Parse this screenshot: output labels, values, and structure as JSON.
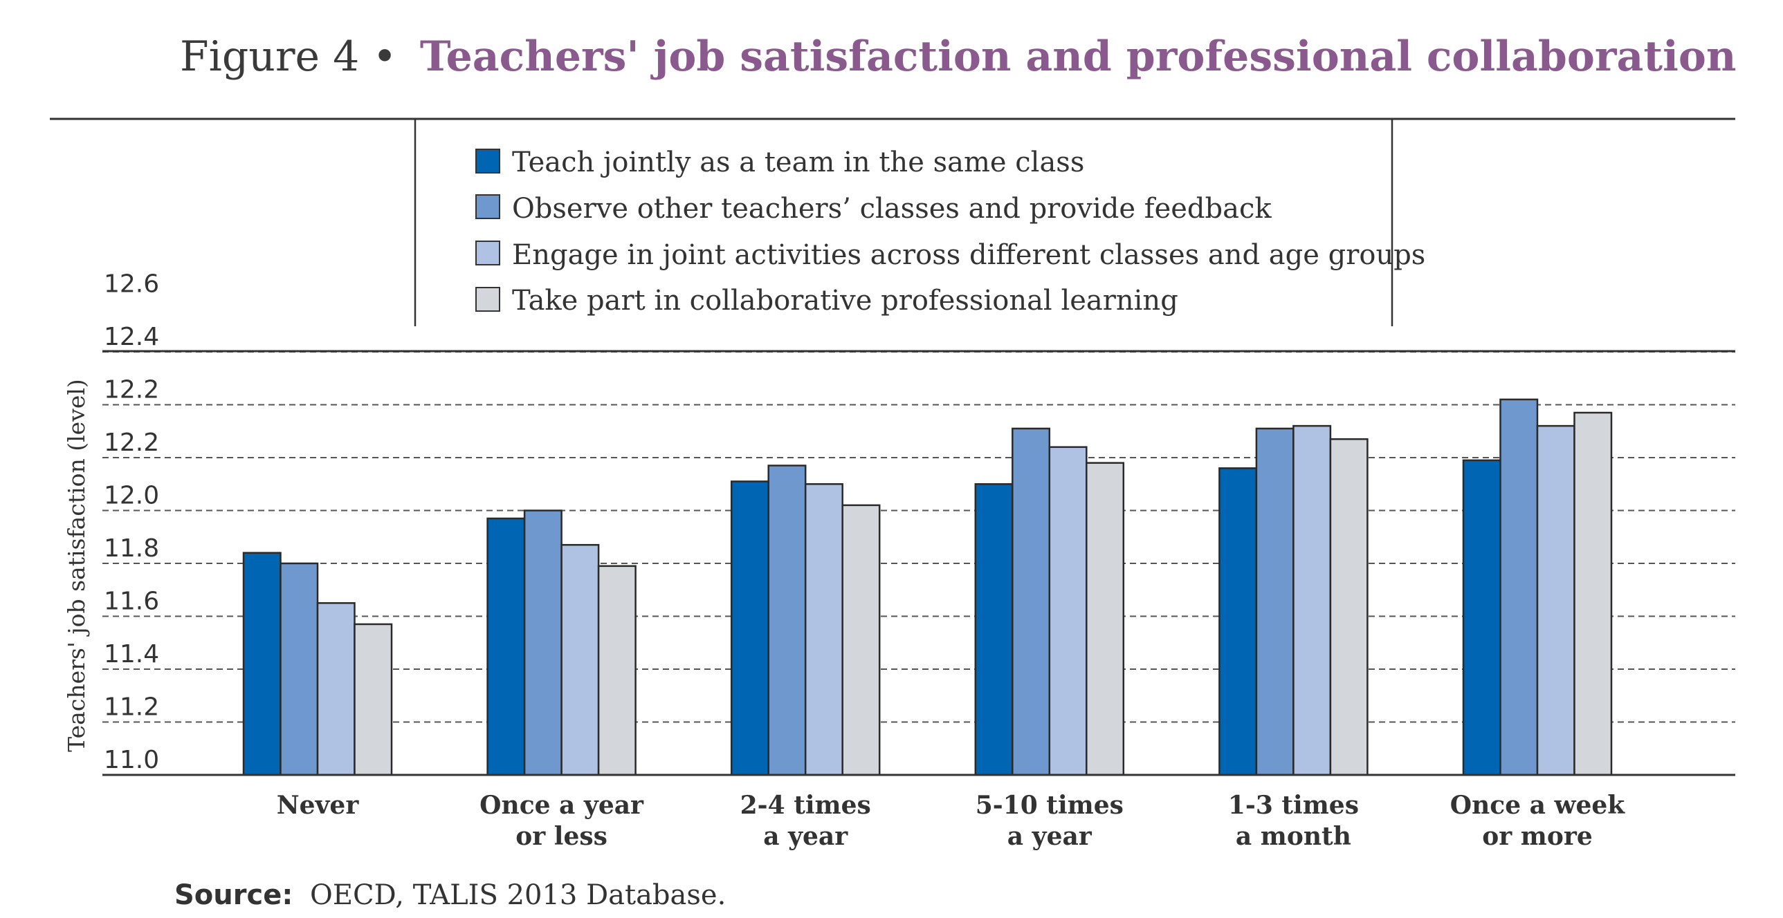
{
  "figure": {
    "prefix": "Figure 4 •",
    "title": "Teachers' job satisfaction and professional collaboration"
  },
  "source": {
    "label": "Source:",
    "text": "OECD, TALIS 2013 Database."
  },
  "chart_data": {
    "type": "bar",
    "title": "Teachers' job satisfaction and professional collaboration",
    "xlabel": "",
    "ylabel": "Teachers' job satisfaction (level)",
    "ylim": [
      11.0,
      12.6
    ],
    "yticks": [
      "11.0",
      "11.2",
      "11.4",
      "11.6",
      "11.8",
      "12.0",
      "12.2",
      "12.2",
      "12.4",
      "12.6"
    ],
    "ytick_values": [
      11.0,
      11.2,
      11.4,
      11.6,
      11.8,
      12.0,
      12.2,
      12.2,
      12.4,
      12.6
    ],
    "grid": true,
    "legend_position": "top-center",
    "categories": [
      [
        "Never"
      ],
      [
        "Once a year",
        "or less"
      ],
      [
        "2-4 times",
        "a year"
      ],
      [
        "5-10 times",
        "a year"
      ],
      [
        "1-3 times",
        "a month"
      ],
      [
        "Once a week",
        "or more"
      ]
    ],
    "series": [
      {
        "name": "Teach jointly as a team in the same class",
        "color": "#0066b3",
        "values": [
          11.84,
          11.97,
          12.11,
          12.1,
          12.16,
          12.19
        ]
      },
      {
        "name": "Observe other teachers’ classes and provide feedback",
        "color": "#6f98cf",
        "values": [
          11.8,
          12.0,
          12.17,
          12.31,
          12.31,
          12.42
        ]
      },
      {
        "name": "Engage in joint activities across different classes and age groups",
        "color": "#b0c2e4",
        "values": [
          11.65,
          11.87,
          12.1,
          12.24,
          12.32,
          12.32
        ]
      },
      {
        "name": "Take part in collaborative professional learning",
        "color": "#d3d6da",
        "values": [
          11.57,
          11.79,
          12.02,
          12.18,
          12.27,
          12.37
        ]
      }
    ]
  }
}
